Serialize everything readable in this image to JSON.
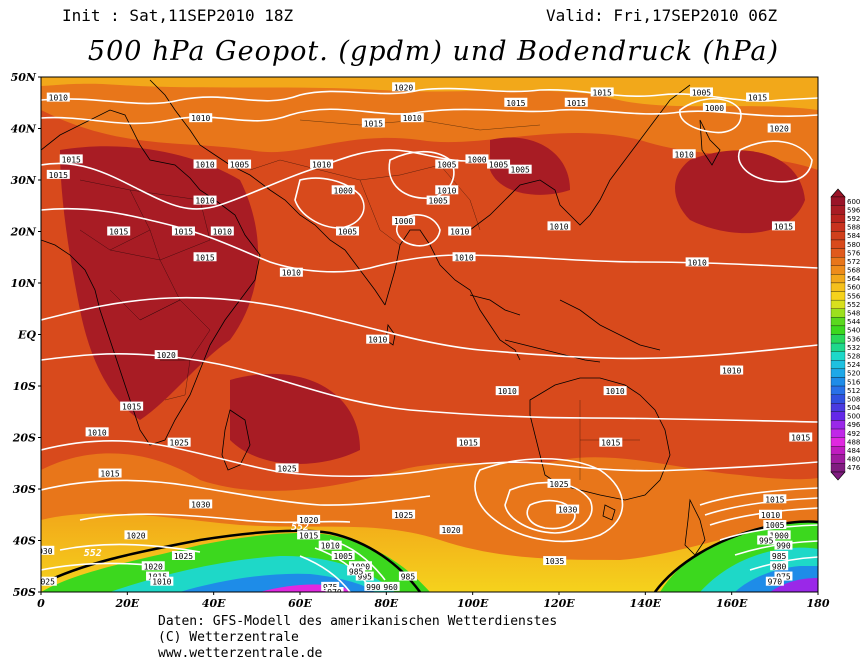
{
  "header": {
    "init": "Init : Sat,11SEP2010 18Z",
    "valid": "Valid: Fri,17SEP2010 06Z",
    "title": "500 hPa Geopot. (gpdm) und Bodendruck (hPa)"
  },
  "map": {
    "lat_labels": [
      "50N",
      "40N",
      "30N",
      "20N",
      "10N",
      "EQ",
      "10S",
      "20S",
      "30S",
      "40S",
      "50S"
    ],
    "lon_labels": [
      "0",
      "20E",
      "40E",
      "60E",
      "80E",
      "100E",
      "120E",
      "140E",
      "160E",
      "180"
    ],
    "colors": {
      "deep_red": "#a81c24",
      "red": "#c8321e",
      "red_orange": "#d84a1c",
      "orange": "#e8761a",
      "yellow_orange": "#f2a81a",
      "yellow": "#f5d21c",
      "green": "#3cd81e",
      "cyan": "#1ed8c8",
      "blue": "#1e8ce8",
      "violet": "#9a28e8",
      "magenta": "#e028e0",
      "isobar": "#ffffff",
      "contour_552": "#000000"
    },
    "isobar_labels": [
      {
        "text": "1010",
        "lon": 4,
        "lat": 46
      },
      {
        "text": "1015",
        "lon": 7,
        "lat": 34
      },
      {
        "text": "1015",
        "lon": 4,
        "lat": 31
      },
      {
        "text": "1010",
        "lon": 37,
        "lat": 42
      },
      {
        "text": "1010",
        "lon": 38,
        "lat": 33
      },
      {
        "text": "1005",
        "lon": 46,
        "lat": 33
      },
      {
        "text": "1020",
        "lon": 84,
        "lat": 48
      },
      {
        "text": "1015",
        "lon": 77,
        "lat": 41
      },
      {
        "text": "1010",
        "lon": 86,
        "lat": 42
      },
      {
        "text": "1010",
        "lon": 65,
        "lat": 33
      },
      {
        "text": "1005",
        "lon": 94,
        "lat": 33
      },
      {
        "text": "1000",
        "lon": 101,
        "lat": 34
      },
      {
        "text": "1005",
        "lon": 106,
        "lat": 33
      },
      {
        "text": "1005",
        "lon": 111,
        "lat": 32
      },
      {
        "text": "1010",
        "lon": 94,
        "lat": 28
      },
      {
        "text": "1005",
        "lon": 92,
        "lat": 26
      },
      {
        "text": "1000",
        "lon": 70,
        "lat": 28
      },
      {
        "text": "1000",
        "lon": 84,
        "lat": 22
      },
      {
        "text": "1005",
        "lon": 71,
        "lat": 20
      },
      {
        "text": "1015",
        "lon": 110,
        "lat": 45
      },
      {
        "text": "1015",
        "lon": 124,
        "lat": 45
      },
      {
        "text": "1015",
        "lon": 130,
        "lat": 47
      },
      {
        "text": "1005",
        "lon": 153,
        "lat": 47
      },
      {
        "text": "1000",
        "lon": 156,
        "lat": 44
      },
      {
        "text": "1015",
        "lon": 166,
        "lat": 46
      },
      {
        "text": "1010",
        "lon": 149,
        "lat": 35
      },
      {
        "text": "1020",
        "lon": 171,
        "lat": 40
      },
      {
        "text": "1015",
        "lon": 172,
        "lat": 21
      },
      {
        "text": "1010",
        "lon": 120,
        "lat": 21
      },
      {
        "text": "1010",
        "lon": 97,
        "lat": 20
      },
      {
        "text": "1010",
        "lon": 98,
        "lat": 15
      },
      {
        "text": "1010",
        "lon": 152,
        "lat": 14
      },
      {
        "text": "1010",
        "lon": 58,
        "lat": 12
      },
      {
        "text": "1010",
        "lon": 38,
        "lat": 26
      },
      {
        "text": "1015",
        "lon": 33,
        "lat": 20
      },
      {
        "text": "1010",
        "lon": 42,
        "lat": 20
      },
      {
        "text": "1015",
        "lon": 38,
        "lat": 15
      },
      {
        "text": "1015",
        "lon": 18,
        "lat": 20
      },
      {
        "text": "1010",
        "lon": 78,
        "lat": -1
      },
      {
        "text": "1020",
        "lon": 29,
        "lat": -4
      },
      {
        "text": "1010",
        "lon": 108,
        "lat": -11
      },
      {
        "text": "1010",
        "lon": 133,
        "lat": -11
      },
      {
        "text": "1010",
        "lon": 160,
        "lat": -7
      },
      {
        "text": "1015",
        "lon": 21,
        "lat": -14
      },
      {
        "text": "1010",
        "lon": 13,
        "lat": -19
      },
      {
        "text": "1025",
        "lon": 32,
        "lat": -21
      },
      {
        "text": "1015",
        "lon": 99,
        "lat": -21
      },
      {
        "text": "1015",
        "lon": 132,
        "lat": -21
      },
      {
        "text": "1015",
        "lon": 176,
        "lat": -20
      },
      {
        "text": "1025",
        "lon": 57,
        "lat": -26
      },
      {
        "text": "1015",
        "lon": 16,
        "lat": -27
      },
      {
        "text": "1025",
        "lon": 120,
        "lat": -29
      },
      {
        "text": "1030",
        "lon": 37,
        "lat": -33
      },
      {
        "text": "1030",
        "lon": 122,
        "lat": -34
      },
      {
        "text": "1020",
        "lon": 62,
        "lat": -36
      },
      {
        "text": "1015",
        "lon": 62,
        "lat": -39
      },
      {
        "text": "1010",
        "lon": 67,
        "lat": -41
      },
      {
        "text": "1005",
        "lon": 70,
        "lat": -43
      },
      {
        "text": "1000",
        "lon": 74,
        "lat": -45
      },
      {
        "text": "995",
        "lon": 75,
        "lat": -47
      },
      {
        "text": "990",
        "lon": 77,
        "lat": -49
      },
      {
        "text": "1025",
        "lon": 84,
        "lat": -35
      },
      {
        "text": "1020",
        "lon": 95,
        "lat": -38
      },
      {
        "text": "1035",
        "lon": 119,
        "lat": -44
      },
      {
        "text": "1020",
        "lon": 22,
        "lat": -39
      },
      {
        "text": "1025",
        "lon": 33,
        "lat": -43
      },
      {
        "text": "1015",
        "lon": 170,
        "lat": -32
      },
      {
        "text": "1010",
        "lon": 169,
        "lat": -35
      },
      {
        "text": "1005",
        "lon": 170,
        "lat": -37
      },
      {
        "text": "1000",
        "lon": 171,
        "lat": -39
      },
      {
        "text": "995",
        "lon": 168,
        "lat": -40
      },
      {
        "text": "990",
        "lon": 172,
        "lat": -41
      },
      {
        "text": "985",
        "lon": 171,
        "lat": -43
      },
      {
        "text": "980",
        "lon": 171,
        "lat": -45
      },
      {
        "text": "975",
        "lon": 172,
        "lat": -47
      },
      {
        "text": "970",
        "lon": 170,
        "lat": -48
      },
      {
        "text": "030",
        "lon": 1,
        "lat": -42
      },
      {
        "text": "1025",
        "lon": 1,
        "lat": -48
      },
      {
        "text": "1020",
        "lon": 26,
        "lat": -45
      },
      {
        "text": "1015",
        "lon": 27,
        "lat": -47
      },
      {
        "text": "1010",
        "lon": 28,
        "lat": -48
      },
      {
        "text": "985",
        "lon": 73,
        "lat": -46
      },
      {
        "text": "985",
        "lon": 85,
        "lat": -47
      },
      {
        "text": "960",
        "lon": 81,
        "lat": -49
      },
      {
        "text": "975",
        "lon": 67,
        "lat": -49
      },
      {
        "text": "970",
        "lon": 68,
        "lat": -50
      }
    ],
    "contour_labels": [
      {
        "text": "552",
        "lon": 12,
        "lat": -43
      },
      {
        "text": "552",
        "lon": 60,
        "lat": -38
      }
    ]
  },
  "colorbar": {
    "labels": [
      "600",
      "596",
      "592",
      "588",
      "584",
      "580",
      "576",
      "572",
      "568",
      "564",
      "560",
      "556",
      "552",
      "548",
      "544",
      "540",
      "536",
      "532",
      "528",
      "524",
      "520",
      "516",
      "512",
      "508",
      "504",
      "500",
      "496",
      "492",
      "488",
      "484",
      "480",
      "476"
    ]
  },
  "credits": {
    "line1": "Daten: GFS-Modell des amerikanischen Wetterdienstes",
    "line2": "(C) Wetterzentrale",
    "line3": "www.wetterzentrale.de"
  }
}
